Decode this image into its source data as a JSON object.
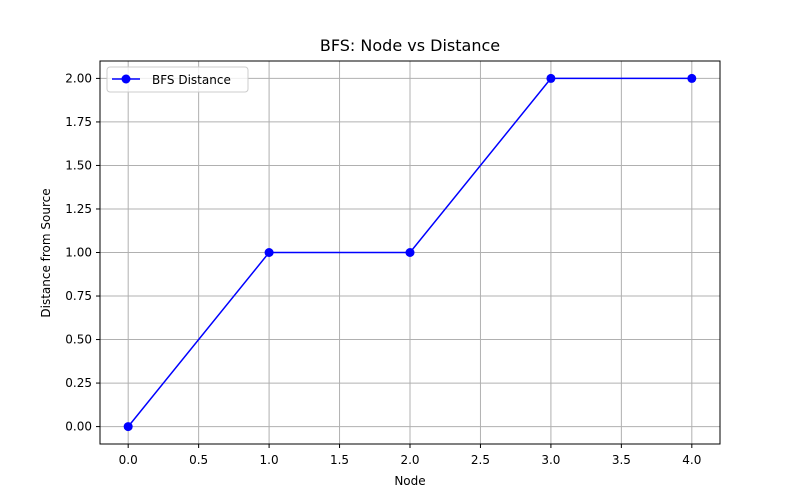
{
  "chart_data": {
    "type": "line",
    "title": "BFS: Node vs Distance",
    "xlabel": "Node",
    "ylabel": "Distance from Source",
    "xlim": [
      -0.2,
      4.2
    ],
    "ylim": [
      -0.1,
      2.1
    ],
    "x_ticks": [
      0.0,
      0.5,
      1.0,
      1.5,
      2.0,
      2.5,
      3.0,
      3.5,
      4.0
    ],
    "x_tick_labels": [
      "0.0",
      "0.5",
      "1.0",
      "1.5",
      "2.0",
      "2.5",
      "3.0",
      "3.5",
      "4.0"
    ],
    "y_ticks": [
      0.0,
      0.25,
      0.5,
      0.75,
      1.0,
      1.25,
      1.5,
      1.75,
      2.0
    ],
    "y_tick_labels": [
      "0.00",
      "0.25",
      "0.50",
      "0.75",
      "1.00",
      "1.25",
      "1.50",
      "1.75",
      "2.00"
    ],
    "grid": true,
    "legend_position": "top-left",
    "series": [
      {
        "name": "BFS Distance",
        "color": "#0000ff",
        "marker": "circle",
        "x": [
          0,
          1,
          2,
          3,
          4
        ],
        "y": [
          0,
          1,
          1,
          2,
          2
        ]
      }
    ]
  }
}
